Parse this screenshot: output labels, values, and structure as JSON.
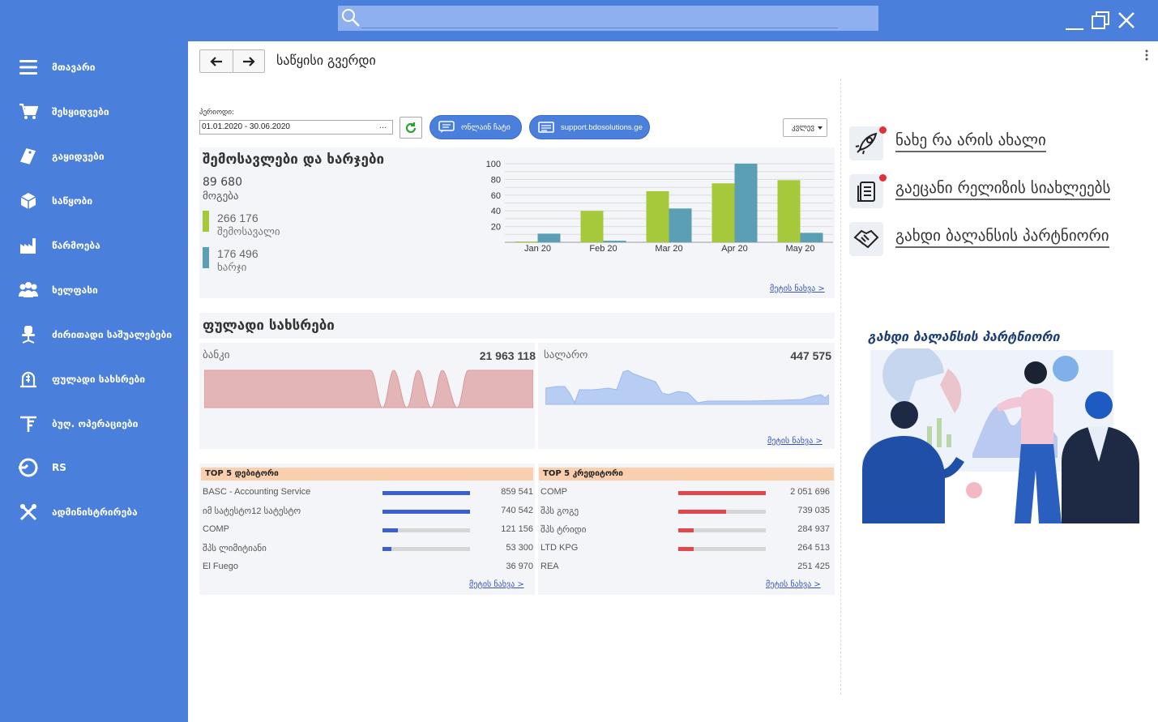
{
  "header": {
    "search_placeholder": ""
  },
  "sidebar": {
    "items": [
      {
        "label": "მთავარი",
        "icon": "menu-icon"
      },
      {
        "label": "შესყიდვები",
        "icon": "cart-icon"
      },
      {
        "label": "გაყიდვები",
        "icon": "tag-icon"
      },
      {
        "label": "საწყობი",
        "icon": "box-icon"
      },
      {
        "label": "წარმოება",
        "icon": "factory-icon"
      },
      {
        "label": "ხელფასი",
        "icon": "people-icon"
      },
      {
        "label": "ძირითადი საშუალებები",
        "icon": "chair-icon"
      },
      {
        "label": "ფულადი სახსრები",
        "icon": "money-icon"
      },
      {
        "label": "ბუღ. ოპერაციები",
        "icon": "ledger-icon"
      },
      {
        "label": "RS",
        "icon": "rs-icon"
      },
      {
        "label": "ადმინისტრირება",
        "icon": "tools-icon"
      }
    ]
  },
  "page": {
    "title": "საწყისი გვერდი",
    "period_label": "პერიოდი:",
    "period_value": "01.01.2020 - 30.06.2020",
    "period_dots": "...",
    "chat_label": "ონლაინ ჩატი",
    "support_label": "support.bdosolutions.ge",
    "period_select": "კვლევ"
  },
  "income": {
    "title": "შემოსავლები და ხარჯები",
    "profit_value": "89 680",
    "profit_label": "მოგება",
    "income_value": "266 176",
    "income_label": "შემოსავალი",
    "expense_value": "176 496",
    "expense_label": "ხარჯი",
    "more": "მეტის ნახვა >",
    "colors": {
      "income": "#a5c93a",
      "expense": "#5b9fb5"
    }
  },
  "chart_data": {
    "type": "bar",
    "categories": [
      "Jan 20",
      "Feb 20",
      "Mar 20",
      "Apr 20",
      "May 20"
    ],
    "series": [
      {
        "values": [
          1,
          40,
          65,
          75,
          79
        ]
      },
      {
        "values": [
          11,
          2,
          43,
          100,
          12
        ]
      }
    ],
    "ylim": [
      0,
      100
    ],
    "yticks": [
      "100",
      "80",
      "60",
      "40",
      "20"
    ],
    "grid": true
  },
  "cash": {
    "title": "ფულადი სახსრები",
    "bank_label": "ბანკი",
    "bank_value": "21 963 118",
    "cash_label": "სალარო",
    "cash_value": "447 575",
    "more": "მეტის ნახვა >",
    "colors": {
      "bank": "#e4b5b7",
      "cashbox": "#b8cdf2"
    }
  },
  "top_debtors": {
    "title": "TOP 5 დებიტორი",
    "rows": [
      {
        "name": "BASC - Accounting Service",
        "value": "859 541",
        "pct": 1.0
      },
      {
        "name": "იმ სატესტო12 სატესტო",
        "value": "740 542",
        "pct": 1.0
      },
      {
        "name": "COMP",
        "value": "121 156",
        "pct": 0.18
      },
      {
        "name": "შპს ლიმიტიანი",
        "value": "53 300",
        "pct": 0.1
      },
      {
        "name": "El Fuego",
        "value": "36 970",
        "pct": 0.0
      }
    ],
    "more": "მეტის ნახვა >",
    "color": "#3a5fd0"
  },
  "top_creditors": {
    "title": "TOP 5 კრედიტორი",
    "rows": [
      {
        "name": "COMP",
        "value": "2 051 696",
        "pct": 1.0
      },
      {
        "name": "შპს გოგე",
        "value": "739 035",
        "pct": 0.55
      },
      {
        "name": "შპს ტრიდი",
        "value": "284 937",
        "pct": 0.18
      },
      {
        "name": "LTD KPG",
        "value": "264 513",
        "pct": 0.18
      },
      {
        "name": "REA",
        "value": "251 425",
        "pct": 0.0
      }
    ],
    "more": "მეტის ნახვა >",
    "color": "#e4474b"
  },
  "right_panel": {
    "links": [
      {
        "label": "ნახე რა არის ახალი",
        "icon": "rocket-icon",
        "badge": true
      },
      {
        "label": "გაეცანი რელიზის სიახლეებს",
        "icon": "notes-icon",
        "badge": true
      },
      {
        "label": "გახდი ბალანსის პარტნიორი",
        "icon": "handshake-icon",
        "badge": false
      }
    ],
    "promo_title": "გახდი ბალანსის პარტნიორი"
  }
}
